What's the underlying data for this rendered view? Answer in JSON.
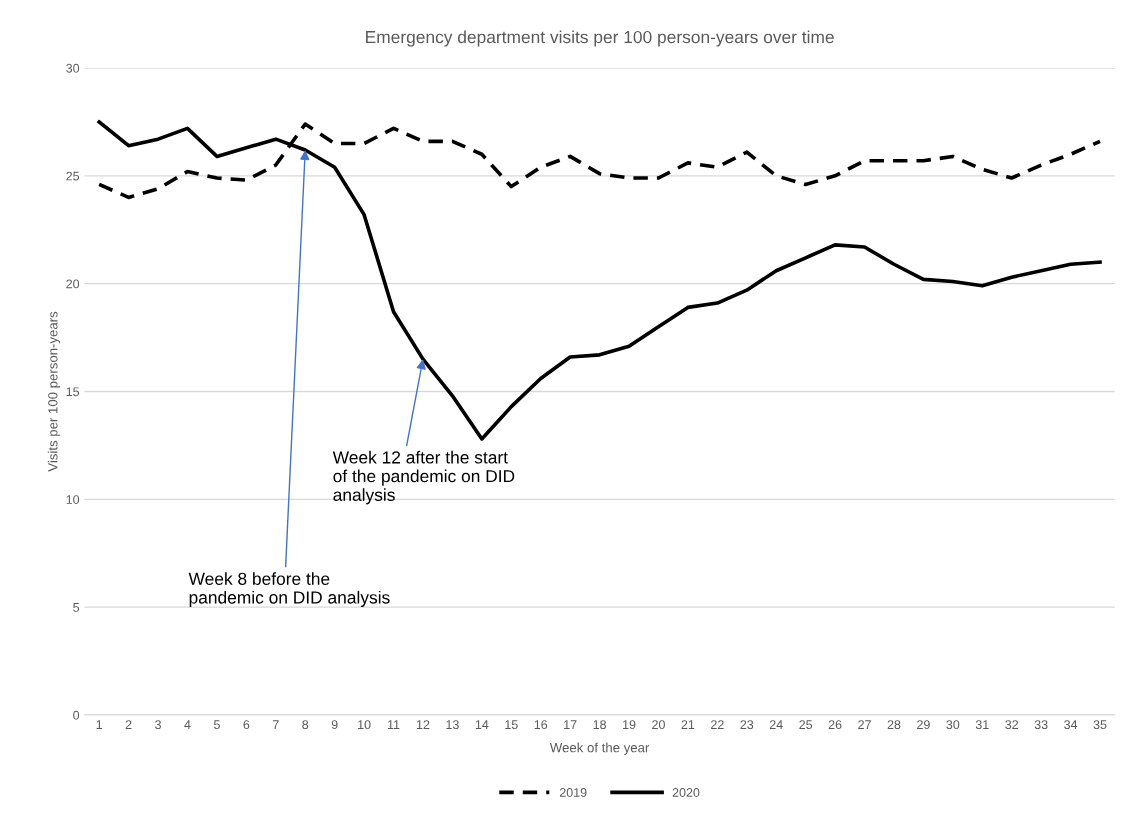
{
  "chart_data": {
    "type": "line",
    "title": "Emergency department visits per 100 person-years over time",
    "xlabel": "Week of the year",
    "ylabel": "Visits per 100 person-years",
    "categories": [
      "1",
      "2",
      "3",
      "4",
      "5",
      "6",
      "7",
      "8",
      "9",
      "10",
      "11",
      "12",
      "13",
      "14",
      "15",
      "16",
      "17",
      "18",
      "19",
      "20",
      "21",
      "22",
      "23",
      "24",
      "25",
      "26",
      "27",
      "28",
      "29",
      "30",
      "31",
      "32",
      "33",
      "34",
      "35"
    ],
    "series": [
      {
        "name": "2019",
        "color": "#000000",
        "line_style": "dashed",
        "values": [
          24.6,
          24.0,
          24.4,
          25.2,
          24.9,
          24.8,
          25.5,
          27.4,
          26.5,
          26.5,
          27.2,
          26.6,
          26.6,
          26.0,
          24.5,
          25.4,
          25.9,
          25.1,
          24.9,
          24.9,
          25.6,
          25.4,
          26.1,
          25.0,
          24.6,
          25.0,
          25.7,
          25.7,
          25.7,
          25.9,
          25.3,
          24.9,
          25.5,
          26.0,
          26.6
        ]
      },
      {
        "name": "2020",
        "color": "#000000",
        "line_style": "solid",
        "values": [
          27.5,
          26.4,
          26.7,
          27.2,
          25.9,
          26.3,
          26.7,
          26.2,
          25.4,
          23.2,
          18.7,
          16.5,
          14.8,
          12.8,
          14.3,
          15.6,
          16.6,
          16.7,
          17.1,
          18.0,
          18.9,
          19.1,
          19.7,
          20.6,
          21.2,
          21.8,
          21.7,
          20.9,
          20.2,
          20.1,
          19.9,
          20.3,
          20.6,
          20.9,
          21.0
        ]
      }
    ],
    "ylim": [
      0,
      30
    ],
    "yticks": [
      0,
      5,
      10,
      15,
      20,
      25,
      30
    ],
    "grid": "y",
    "legend": "bottom",
    "marker": "none",
    "annotations": [
      {
        "text": "Week 8 before the\npandemic on DID analysis",
        "x": "8",
        "y": 26.2
      },
      {
        "text": "Week 12 after the start\nof the pandemic on DID\nanalysis",
        "x": "12",
        "y": 16.5
      }
    ]
  }
}
